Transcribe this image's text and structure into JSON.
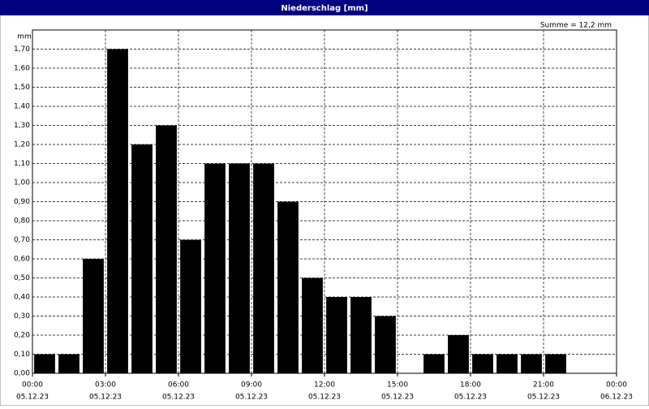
{
  "title_bar": "Niederschlag [mm]",
  "chart_data": {
    "type": "bar",
    "annotation": "Summe = 12,2 mm",
    "ylabel": "mm",
    "color": "#000000",
    "grid": true,
    "x": [
      0,
      1,
      2,
      3,
      4,
      5,
      6,
      7,
      8,
      9,
      10,
      11,
      12,
      13,
      14,
      15,
      16,
      17,
      18,
      19,
      20,
      21,
      22,
      23
    ],
    "bar_width": 1,
    "values": [
      0.1,
      0.1,
      0.6,
      1.7,
      1.2,
      1.3,
      0.7,
      1.1,
      1.1,
      1.1,
      0.9,
      0.5,
      0.4,
      0.4,
      0.3,
      0,
      0.1,
      0.2,
      0.1,
      0.1,
      0.1,
      0.1,
      0,
      0
    ],
    "xlim": [
      0,
      24
    ],
    "xticks": [
      {
        "value": 0,
        "label": "00:00"
      },
      {
        "value": 3,
        "label": "03:00"
      },
      {
        "value": 6,
        "label": "06:00"
      },
      {
        "value": 9,
        "label": "09:00"
      },
      {
        "value": 12,
        "label": "12:00"
      },
      {
        "value": 15,
        "label": "15:00"
      },
      {
        "value": 18,
        "label": "18:00"
      },
      {
        "value": 21,
        "label": "21:00"
      },
      {
        "value": 24,
        "label": "00:00"
      }
    ],
    "xtick_dates": [
      "05.12.23",
      "05.12.23",
      "05.12.23",
      "05.12.23",
      "05.12.23",
      "05.12.23",
      "05.12.23",
      "05.12.23",
      "06.12.23"
    ],
    "ylim": [
      0,
      1.8
    ],
    "yticks": [
      {
        "value": 0,
        "label": "0,00"
      },
      {
        "value": 0.1,
        "label": "0,10"
      },
      {
        "value": 0.2,
        "label": "0,20"
      },
      {
        "value": 0.3,
        "label": "0,30"
      },
      {
        "value": 0.4,
        "label": "0,40"
      },
      {
        "value": 0.5,
        "label": "0,50"
      },
      {
        "value": 0.6,
        "label": "0,60"
      },
      {
        "value": 0.7,
        "label": "0,70"
      },
      {
        "value": 0.8,
        "label": "0,80"
      },
      {
        "value": 0.9,
        "label": "0,90"
      },
      {
        "value": 1.0,
        "label": "1,00"
      },
      {
        "value": 1.1,
        "label": "1,10"
      },
      {
        "value": 1.2,
        "label": "1,20"
      },
      {
        "value": 1.3,
        "label": "1,30"
      },
      {
        "value": 1.4,
        "label": "1,40"
      },
      {
        "value": 1.5,
        "label": "1,50"
      },
      {
        "value": 1.6,
        "label": "1,60"
      },
      {
        "value": 1.7,
        "label": "1,70"
      }
    ]
  }
}
